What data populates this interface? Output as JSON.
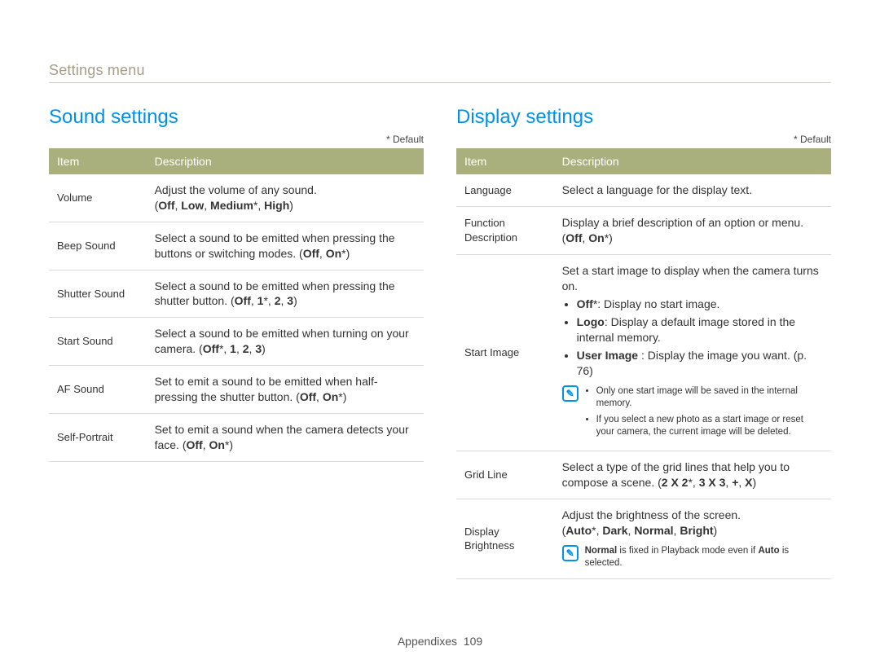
{
  "breadcrumb": "Settings menu",
  "left": {
    "title": "Sound settings",
    "default_note": "* Default",
    "headers": {
      "item": "Item",
      "desc": "Description"
    },
    "rows": [
      {
        "item": "Volume",
        "desc": "Adjust the volume of any sound.",
        "opts_prefix": "(",
        "opts_html": "<span class='b'>Off</span>, <span class='b'>Low</span>, <span class='b'>Medium</span>*, <span class='b'>High</span>)",
        "opts_suffix": ""
      },
      {
        "item": "Beep Sound",
        "desc_html": "Select a sound to be emitted when pressing the buttons or switching modes. (<span class='b'>Off</span>, <span class='b'>On</span>*)"
      },
      {
        "item": "Shutter Sound",
        "desc_html": "Select a sound to be emitted when pressing the shutter button. (<span class='b'>Off</span>, <span class='b'>1</span>*, <span class='b'>2</span>, <span class='b'>3</span>)"
      },
      {
        "item": "Start Sound",
        "desc_html": "Select a sound to be emitted when turning on your camera. (<span class='b'>Off</span>*, <span class='b'>1</span>, <span class='b'>2</span>, <span class='b'>3</span>)"
      },
      {
        "item": "AF Sound",
        "desc_html": "Set to emit a sound to be emitted when half-pressing the shutter button. (<span class='b'>Off</span>, <span class='b'>On</span>*)"
      },
      {
        "item": "Self-Portrait",
        "desc_html": "Set to emit a sound when the camera detects your face. (<span class='b'>Off</span>, <span class='b'>On</span>*)"
      }
    ]
  },
  "right": {
    "title": "Display settings",
    "default_note": "* Default",
    "headers": {
      "item": "Item",
      "desc": "Description"
    },
    "rows": {
      "language": {
        "item": "Language",
        "desc": "Select a language for the display text."
      },
      "funcdesc": {
        "item": "Function Description",
        "desc_html": "Display a brief description of an option or menu. (<span class='b'>Off</span>, <span class='b'>On</span>*)"
      },
      "startimage": {
        "item": "Start Image",
        "intro": "Set a start image to display when the camera turns on.",
        "bullets": [
          "<span class='b'>Off</span>*: Display no start image.",
          "<span class='b'>Logo</span>: Display a default image stored in the internal memory.",
          "<span class='b'>User Image</span> : Display the image you want. (p. 76)"
        ],
        "note_bullets": [
          "Only one start image will be saved in the internal memory.",
          "If you select a new photo as a start image or reset your camera, the current image will be deleted."
        ]
      },
      "gridline": {
        "item": "Grid Line",
        "desc_html": "Select a type of the grid lines that help you to compose a scene. (<span class='b'>2 X 2</span>*, <span class='b'>3 X 3</span>, <span class='b'>+</span>, <span class='b'>X</span>)"
      },
      "brightness": {
        "item": "Display Brightness",
        "intro": "Adjust the brightness of the screen.",
        "opts_html": "(<span class='b'>Auto</span>*, <span class='b'>Dark</span>, <span class='b'>Normal</span>, <span class='b'>Bright</span>)",
        "note_html": "<span class='b'>Normal</span> is fixed in Playback mode even if <span class='b'>Auto</span> is selected."
      }
    }
  },
  "footer": {
    "section": "Appendixes",
    "page": "109"
  },
  "colors": {
    "accent": "#0091ea",
    "header_bg": "#aab07d"
  }
}
